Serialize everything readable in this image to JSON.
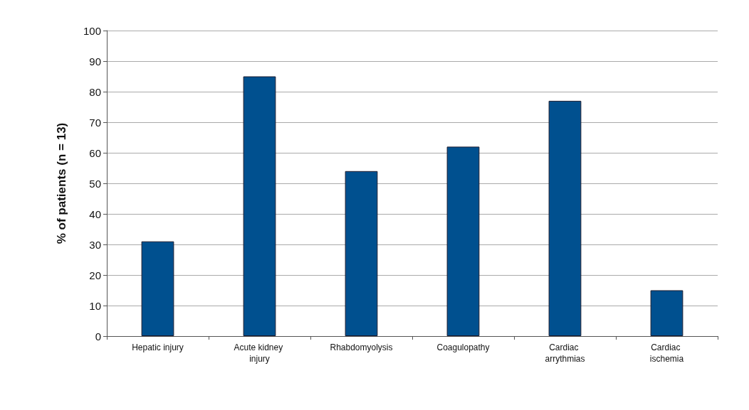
{
  "chart_data": {
    "type": "bar",
    "ylabel": "% of patients (n = 13)",
    "categories": [
      "Hepatic injury",
      "Acute kidney injury",
      "Rhabdomyolysis",
      "Coagulopathy",
      "Cardiac arrythmias",
      "Cardiac ischemia"
    ],
    "values": [
      31,
      85,
      54,
      62,
      77,
      15
    ],
    "color": "#00508f",
    "ylim": [
      0,
      100
    ],
    "yticks": [
      0,
      10,
      20,
      30,
      40,
      50,
      60,
      70,
      80,
      90,
      100
    ],
    "grid": "y"
  }
}
